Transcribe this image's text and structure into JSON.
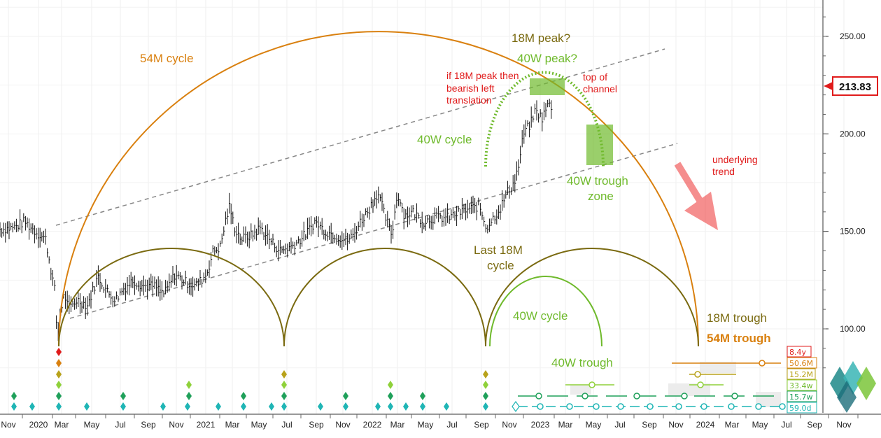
{
  "chart_data": {
    "type": "line",
    "price_label": "213.83",
    "y_ticks": [
      100,
      150,
      200,
      250
    ],
    "y_tick_labels": [
      "100.00",
      "150.00",
      "200.00",
      "250.00"
    ],
    "ylim": [
      58,
      270
    ],
    "x_tick_labels": [
      "Nov",
      "2020",
      "Mar",
      "May",
      "Jul",
      "Sep",
      "Nov",
      "2021",
      "Mar",
      "May",
      "Jul",
      "Sep",
      "Nov",
      "2022",
      "Mar",
      "May",
      "Jul",
      "Sep",
      "Nov",
      "2023",
      "Mar",
      "May",
      "Jul",
      "Sep",
      "Nov",
      "2024",
      "Mar",
      "May",
      "Jul",
      "Sep",
      "Nov"
    ],
    "annotations": {
      "c54": "54M cycle",
      "peak18": "18M peak?",
      "peak40": "40W peak?",
      "bearish1": "if 18M peak then",
      "bearish2": "bearish left",
      "bearish3": "translation",
      "top1": "top of",
      "top2": "channel",
      "c40a": "40W cycle",
      "trough40z1": "40W trough",
      "trough40z2": "zone",
      "under1": "underlying",
      "under2": "trend",
      "last18a": "Last 18M",
      "last18b": "cycle",
      "c40b": "40W cycle",
      "trough40": "40W trough",
      "trough18": "18M trough",
      "trough54": "54M trough"
    },
    "cycle_labels": [
      "8.4y",
      "50.6M",
      "15.2M",
      "33.4w",
      "15.7w",
      "59.0d"
    ],
    "colors": {
      "orange": "#d9800f",
      "olive": "#7a6a10",
      "green": "#6fba2c",
      "red": "#e01b1b",
      "teal": "#1fb5b5",
      "price": "#111111"
    }
  }
}
